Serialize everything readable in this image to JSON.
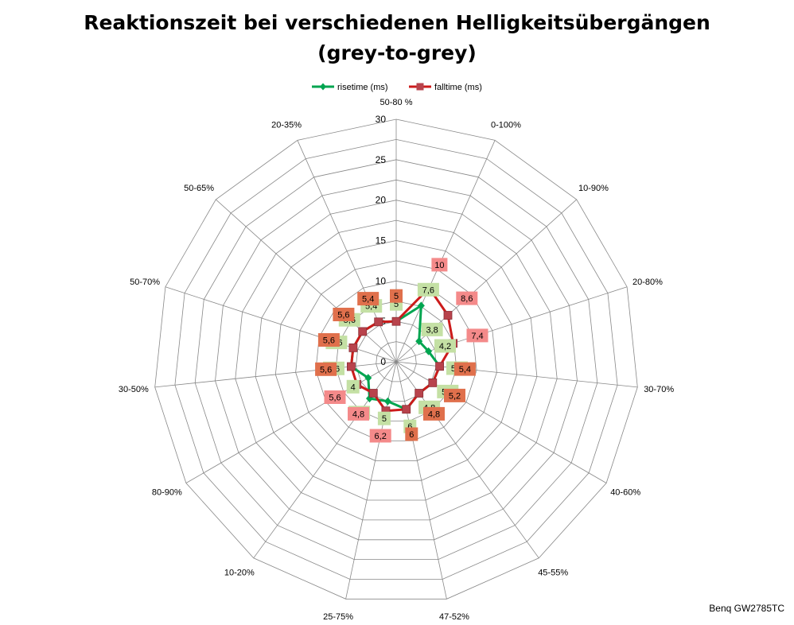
{
  "chart_data": {
    "type": "radar",
    "title": "Reaktionszeit bei verschiedenen Helligkeitsübergängen (grey-to-grey)",
    "title_lines": [
      "Reaktionszeit bei verschiedenen Helligkeitsübergängen",
      "(grey-to-grey)"
    ],
    "categories": [
      "50-80 %",
      "0-100%",
      "10-90%",
      "20-80%",
      "30-70%",
      "40-60%",
      "45-55%",
      "47-52%",
      "25-75%",
      "10-20%",
      "80-90%",
      "30-50%",
      "50-70%",
      "50-65%",
      "20-35%"
    ],
    "axis_labels": [
      "50-80 %",
      "0-100%",
      "10-90%",
      "20-80%",
      "30-70%",
      "40-60%",
      "45-55%",
      "47-52%",
      "25-75%",
      "10-20%",
      "80-90%",
      "30-50%",
      "50-70%",
      "50-65%",
      "20-35%"
    ],
    "range": [
      0,
      30
    ],
    "ticks": [
      "0",
      "5",
      "10",
      "15",
      "20",
      "25",
      "30"
    ],
    "legend_position": "top",
    "series": [
      {
        "name": "risetime (ms)",
        "color": "#00a550",
        "marker": "diamond",
        "label_color": "#c4e0a4",
        "values": [
          5,
          7.6,
          3.8,
          4.2,
          5.4,
          5.2,
          4.8,
          6,
          5,
          5.6,
          4,
          5.6,
          5.6,
          5.6,
          5.4
        ],
        "labels": [
          "5",
          "7,6",
          "3,8",
          "4,2",
          "5,4",
          "5,2",
          "4,8",
          "6",
          "5",
          "5,6",
          "4",
          "5,6",
          "5,6",
          "5,6",
          "5,4"
        ]
      },
      {
        "name": "falltime (ms)",
        "color": "#cc1b1b",
        "marker": "square",
        "label_color": "#f48a8a",
        "values": [
          5,
          10,
          8.6,
          7.4,
          5.4,
          5.2,
          4.8,
          6,
          6.2,
          4.8,
          5.6,
          5.6,
          5.6,
          5.6,
          5.4
        ],
        "labels": [
          "5",
          "10",
          "8,6",
          "7,4",
          "5,4",
          "5,2",
          "4,8",
          "6",
          "6,2",
          "4,8",
          "5,6",
          "5,6",
          "5,6",
          "5,6",
          "5,4"
        ]
      }
    ]
  },
  "watermark": "Benq GW2785TC",
  "colors": {
    "grid": "#888888",
    "dark_label": "#e0704c"
  }
}
